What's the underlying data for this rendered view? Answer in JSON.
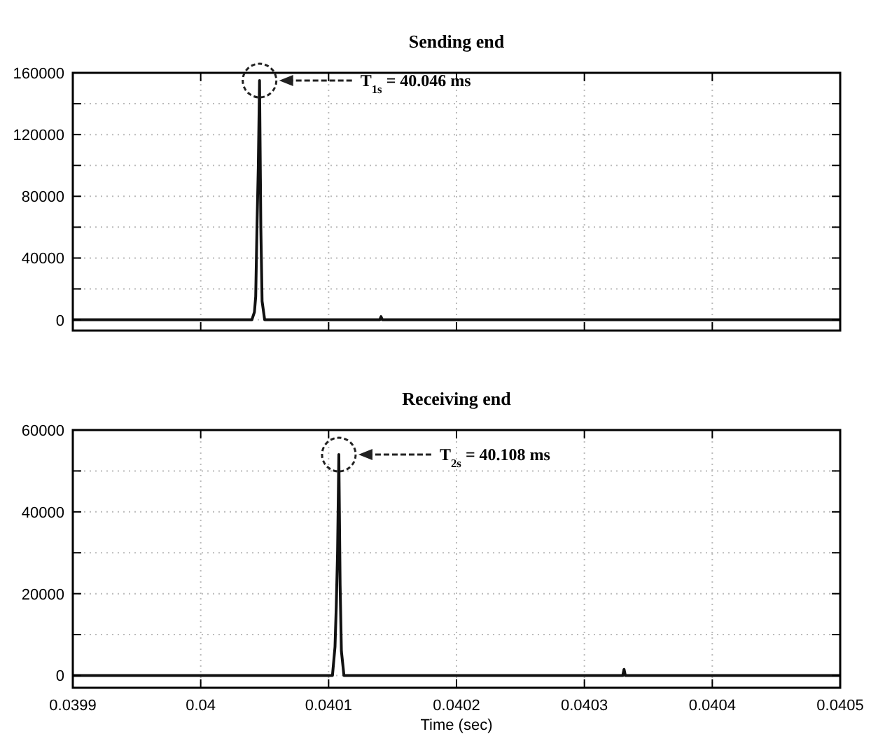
{
  "chart_data": [
    {
      "type": "line",
      "title": "Sending end",
      "x": [
        0.0399,
        0.04004,
        0.040042,
        0.040043,
        0.040044,
        0.040045,
        0.040046,
        0.040047,
        0.040048,
        0.04005,
        0.04014,
        0.040141,
        0.040142,
        0.0405
      ],
      "series": [
        {
          "color": "#111111",
          "values": [
            0,
            0,
            5000,
            15000,
            60000,
            98000,
            155000,
            60000,
            12000,
            0,
            0,
            2000,
            0,
            0
          ]
        }
      ],
      "xlim": [
        0.0399,
        0.0405
      ],
      "xticks": [
        0.0399,
        0.04,
        0.0401,
        0.0402,
        0.0403,
        0.0404,
        0.0405
      ],
      "ylim": [
        -7000,
        160000
      ],
      "yticks": [
        0,
        {
          "value": 20000,
          "label": null
        },
        40000,
        {
          "value": 60000,
          "label": null
        },
        80000,
        {
          "value": 100000,
          "label": null
        },
        120000,
        {
          "value": 140000,
          "label": null
        },
        160000
      ],
      "tick_labels": "y",
      "grid": true,
      "annotations": [
        "T$_{1s}$ = 40.046 ms"
      ]
    },
    {
      "type": "line",
      "title": "Receiving end",
      "xlabel": "Time (sec)",
      "x": [
        0.0399,
        0.040103,
        0.040105,
        0.040106,
        0.040107,
        0.040108,
        0.040109,
        0.04011,
        0.040112,
        0.04033,
        0.040331,
        0.040332,
        0.0405
      ],
      "series": [
        {
          "color": "#111111",
          "values": [
            0,
            0,
            7000,
            17000,
            30000,
            54000,
            22000,
            6000,
            0,
            0,
            1500,
            0,
            0
          ]
        }
      ],
      "xlim": [
        0.0399,
        0.0405
      ],
      "xticks": [
        0.0399,
        0.04,
        0.0401,
        0.0402,
        0.0403,
        0.0404,
        0.0405
      ],
      "ylim": [
        -3000,
        60000
      ],
      "yticks": [
        0,
        {
          "value": 10000,
          "label": null
        },
        20000,
        {
          "value": 30000,
          "label": null
        },
        40000,
        {
          "value": 50000,
          "label": null
        },
        60000
      ],
      "grid": true,
      "annotations": [
        "T$_{2s}$ = 40.108 ms"
      ]
    }
  ]
}
